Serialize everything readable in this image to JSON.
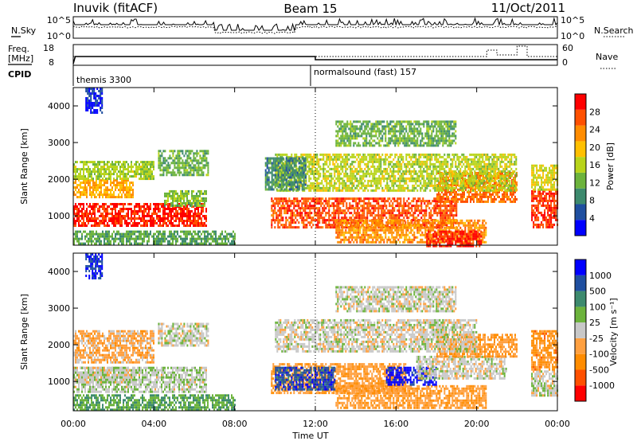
{
  "header": {
    "station": "Inuvik (fitACF)",
    "beam": "Beam 15",
    "date": "11/Oct/2011"
  },
  "status_panels": {
    "nsky_label": "N.Sky",
    "nsky_ticks": [
      "10^5",
      "10^0"
    ],
    "nsearch_label": "N.Search",
    "nsearch_ticks": [
      "10^5",
      "10^0"
    ],
    "freq_label": "Freq.",
    "freq_unit": "[MHz]",
    "freq_ticks": [
      "18",
      "8"
    ],
    "nave_label": "Nave",
    "nave_ticks": [
      "60",
      "0"
    ],
    "cpid_label": "CPID",
    "cpid_entries": [
      {
        "name": "themis 3300",
        "start_hour": 0
      },
      {
        "name": "normalsound (fast) 157",
        "start_hour": 12
      }
    ]
  },
  "time_axis": {
    "label": "Time UT",
    "ticks": [
      "00:00",
      "04:00",
      "08:00",
      "12:00",
      "16:00",
      "20:00",
      "00:00"
    ],
    "range_hours": [
      0,
      24
    ]
  },
  "chart_data": [
    {
      "type": "heatmap",
      "name": "power",
      "ylabel": "Slant Range [km]",
      "yticks": [
        "1000",
        "2000",
        "3000",
        "4000"
      ],
      "ylim": [
        200,
        4500
      ],
      "xlim": [
        0,
        24
      ],
      "colorbar_label": "Power [dB]",
      "colorbar_ticks": [
        "28",
        "24",
        "20",
        "16",
        "12",
        "8",
        "4"
      ],
      "colorbar_range": [
        0,
        32
      ],
      "colors": [
        "#0000ff",
        "#1f4fa0",
        "#3d8a6e",
        "#6cb33c",
        "#b8d41a",
        "#ffc000",
        "#ff8c00",
        "#ff5000",
        "#ff0000"
      ],
      "bands": [
        {
          "t0": 0.0,
          "t1": 6.6,
          "r0": 700,
          "r1": 1350,
          "v": 29
        },
        {
          "t0": 0.0,
          "t1": 3.0,
          "r0": 1500,
          "r1": 2000,
          "v": 21
        },
        {
          "t0": 0.0,
          "t1": 4.0,
          "r0": 2000,
          "r1": 2500,
          "v": 15
        },
        {
          "t0": 4.5,
          "t1": 6.6,
          "r0": 1300,
          "r1": 1700,
          "v": 13
        },
        {
          "t0": 4.2,
          "t1": 6.7,
          "r0": 2100,
          "r1": 2800,
          "v": 12
        },
        {
          "t0": 0.0,
          "t1": 8.0,
          "r0": 250,
          "r1": 600,
          "v": 11
        },
        {
          "t0": 9.8,
          "t1": 19.0,
          "r0": 700,
          "r1": 1500,
          "v": 27
        },
        {
          "t0": 13.0,
          "t1": 20.5,
          "r0": 300,
          "r1": 900,
          "v": 23
        },
        {
          "t0": 17.5,
          "t1": 20.2,
          "r0": 200,
          "r1": 600,
          "v": 29
        },
        {
          "t0": 18.0,
          "t1": 22.0,
          "r0": 1400,
          "r1": 2200,
          "v": 25
        },
        {
          "t0": 10.0,
          "t1": 22.0,
          "r0": 1700,
          "r1": 2700,
          "v": 16
        },
        {
          "t0": 9.5,
          "t1": 11.5,
          "r0": 1700,
          "r1": 2600,
          "v": 9
        },
        {
          "t0": 22.7,
          "t1": 24.0,
          "r0": 700,
          "r1": 1700,
          "v": 28
        },
        {
          "t0": 22.7,
          "t1": 24.0,
          "r0": 1700,
          "r1": 2400,
          "v": 17
        },
        {
          "t0": 13.0,
          "t1": 19.0,
          "r0": 2900,
          "r1": 3600,
          "v": 12
        },
        {
          "t0": 0.6,
          "t1": 1.4,
          "r0": 3800,
          "r1": 4500,
          "v": 3
        }
      ]
    },
    {
      "type": "heatmap",
      "name": "velocity",
      "ylabel": "Slant Range [km]",
      "yticks": [
        "1000",
        "2000",
        "3000",
        "4000"
      ],
      "ylim": [
        200,
        4500
      ],
      "xlim": [
        0,
        24
      ],
      "colorbar_label": "Velocity [m s⁻¹]",
      "colorbar_ticks": [
        "1000",
        "500",
        "100",
        "25",
        "-25",
        "-100",
        "-500",
        "-1000"
      ],
      "colorbar_range": [
        -1000,
        1000
      ],
      "colors": [
        "#ff0000",
        "#ff5000",
        "#ff8c00",
        "#ffa040",
        "#c8c8c8",
        "#6cb33c",
        "#3d8a6e",
        "#1f4fa0",
        "#0000ff"
      ],
      "bands": [
        {
          "t0": 0.0,
          "t1": 6.6,
          "r0": 700,
          "r1": 1400,
          "v": 60
        },
        {
          "t0": 0.0,
          "t1": 4.0,
          "r0": 1500,
          "r1": 2400,
          "v": -200
        },
        {
          "t0": 0.0,
          "t1": 3.0,
          "r0": 1000,
          "r1": 1400,
          "v": 0
        },
        {
          "t0": 4.2,
          "t1": 6.7,
          "r0": 2000,
          "r1": 2600,
          "v": 0
        },
        {
          "t0": 0.0,
          "t1": 8.0,
          "r0": 250,
          "r1": 650,
          "v": 300
        },
        {
          "t0": 9.8,
          "t1": 16.5,
          "r0": 700,
          "r1": 1500,
          "v": -300
        },
        {
          "t0": 10.0,
          "t1": 13.0,
          "r0": 800,
          "r1": 1400,
          "v": 700
        },
        {
          "t0": 13.0,
          "t1": 20.5,
          "r0": 300,
          "r1": 900,
          "v": -300
        },
        {
          "t0": 15.5,
          "t1": 18.0,
          "r0": 900,
          "r1": 1400,
          "v": 900
        },
        {
          "t0": 17.0,
          "t1": 21.5,
          "r0": 1100,
          "r1": 1700,
          "v": 0
        },
        {
          "t0": 18.0,
          "t1": 22.0,
          "r0": 1700,
          "r1": 2300,
          "v": -300
        },
        {
          "t0": 10.0,
          "t1": 20.0,
          "r0": 1800,
          "r1": 2700,
          "v": 0
        },
        {
          "t0": 22.7,
          "t1": 24.0,
          "r0": 600,
          "r1": 1300,
          "v": 0
        },
        {
          "t0": 22.7,
          "t1": 24.0,
          "r0": 1300,
          "r1": 2400,
          "v": -400
        },
        {
          "t0": 13.0,
          "t1": 19.0,
          "r0": 2900,
          "r1": 3600,
          "v": 0
        },
        {
          "t0": 0.6,
          "t1": 1.4,
          "r0": 3800,
          "r1": 4500,
          "v": 800
        }
      ]
    }
  ]
}
